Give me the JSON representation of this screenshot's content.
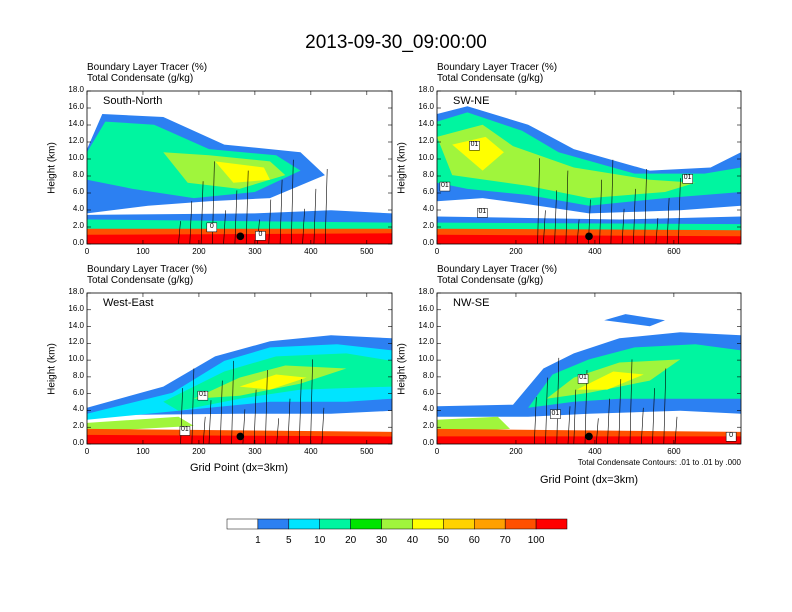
{
  "title": "2013-09-30_09:00:00",
  "panel_title_1": "Boundary Layer Tracer   (%)",
  "panel_title_2": "Total Condensate   (g/kg)",
  "ylabel": "Height (km)",
  "xlabel": "Grid Point (dx=3km)",
  "contour_note": "Total Condensate Contours: .01 to .01 by .000",
  "colorbar": {
    "colors": [
      "#ffffff",
      "#2c80f2",
      "#00e4ff",
      "#00f5a0",
      "#00e400",
      "#a0f53c",
      "#ffff00",
      "#ffd200",
      "#ffa000",
      "#ff5000",
      "#ff0000"
    ],
    "labels": [
      "1",
      "5",
      "10",
      "20",
      "30",
      "40",
      "50",
      "60",
      "70",
      "100"
    ]
  },
  "chart_data": [
    {
      "type": "heatmap",
      "name": "South-North",
      "xlim": [
        0,
        545
      ],
      "ylim": [
        0,
        18
      ],
      "xticks": [
        "0",
        "100",
        "200",
        "300",
        "400",
        "500"
      ],
      "xtick_values": [
        0,
        100,
        200,
        300,
        400,
        500
      ],
      "yticks": [
        "0.0",
        "2.0",
        "4.0",
        "6.0",
        "8.0",
        "10.0",
        "12.0",
        "14.0",
        "16.0",
        "18.0"
      ],
      "marker": {
        "x": 274,
        "y": 0.9
      },
      "contour_labels": [
        {
          "x": 223,
          "y": 1.9,
          "text": "0"
        },
        {
          "x": 310,
          "y": 0.9,
          "text": "0"
        }
      ]
    },
    {
      "type": "heatmap",
      "name": "SW-NE",
      "xlim": [
        0,
        770
      ],
      "ylim": [
        0,
        18
      ],
      "xticks": [
        "0",
        "200",
        "400",
        "600"
      ],
      "xtick_values": [
        0,
        200,
        400,
        600
      ],
      "yticks": [
        "0.0",
        "2.0",
        "4.0",
        "6.0",
        "8.0",
        "10.0",
        "12.0",
        "14.0",
        "16.0",
        "18.0"
      ],
      "marker": {
        "x": 385,
        "y": 0.9
      },
      "contour_labels": [
        {
          "x": 95,
          "y": 11.5,
          "text": "01"
        },
        {
          "x": 20,
          "y": 6.7,
          "text": "01"
        },
        {
          "x": 115,
          "y": 3.6,
          "text": "01"
        },
        {
          "x": 635,
          "y": 7.6,
          "text": "01"
        }
      ]
    },
    {
      "type": "heatmap",
      "name": "West-East",
      "xlim": [
        0,
        545
      ],
      "ylim": [
        0,
        18
      ],
      "xticks": [
        "0",
        "100",
        "200",
        "300",
        "400",
        "500"
      ],
      "xtick_values": [
        0,
        100,
        200,
        300,
        400,
        500
      ],
      "yticks": [
        "0.0",
        "2.0",
        "4.0",
        "6.0",
        "8.0",
        "10.0",
        "12.0",
        "14.0",
        "16.0",
        "18.0"
      ],
      "marker": {
        "x": 274,
        "y": 0.9
      },
      "contour_labels": [
        {
          "x": 207,
          "y": 5.7,
          "text": "01"
        },
        {
          "x": 175,
          "y": 1.5,
          "text": "01"
        }
      ]
    },
    {
      "type": "heatmap",
      "name": "NW-SE",
      "xlim": [
        0,
        770
      ],
      "ylim": [
        0,
        18
      ],
      "xticks": [
        "0",
        "200",
        "400",
        "600"
      ],
      "xtick_values": [
        0,
        200,
        400,
        600
      ],
      "yticks": [
        "0.0",
        "2.0",
        "4.0",
        "6.0",
        "8.0",
        "10.0",
        "12.0",
        "14.0",
        "16.0",
        "18.0"
      ],
      "marker": {
        "x": 385,
        "y": 0.9
      },
      "contour_labels": [
        {
          "x": 370,
          "y": 7.7,
          "text": "01"
        },
        {
          "x": 300,
          "y": 3.5,
          "text": "01"
        },
        {
          "x": 745,
          "y": 0.8,
          "text": "0"
        }
      ]
    }
  ]
}
